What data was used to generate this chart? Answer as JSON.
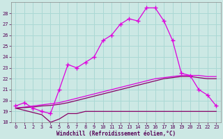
{
  "xlabel": "Windchill (Refroidissement éolien,°C)",
  "background_color": "#cce8e4",
  "grid_color": "#aad8d4",
  "line_color_bright": "#dd00dd",
  "line_color_dark": "#880066",
  "ylim": [
    18,
    29
  ],
  "xlim": [
    -0.5,
    23.5
  ],
  "yticks": [
    18,
    19,
    20,
    21,
    22,
    23,
    24,
    25,
    26,
    27,
    28
  ],
  "xticks": [
    0,
    1,
    2,
    3,
    4,
    5,
    6,
    7,
    8,
    9,
    10,
    11,
    12,
    13,
    14,
    15,
    16,
    17,
    18,
    19,
    20,
    21,
    22,
    23
  ],
  "hours": [
    0,
    1,
    2,
    3,
    4,
    5,
    6,
    7,
    8,
    9,
    10,
    11,
    12,
    13,
    14,
    15,
    16,
    17,
    18,
    19,
    20,
    21,
    22,
    23
  ],
  "temp": [
    19.5,
    19.8,
    19.3,
    19.0,
    18.8,
    21.0,
    23.3,
    23.0,
    23.5,
    24.0,
    25.5,
    26.0,
    27.0,
    27.5,
    27.3,
    28.5,
    28.5,
    27.3,
    25.5,
    22.5,
    22.3,
    21.0,
    20.5,
    19.5
  ],
  "windchill": [
    19.3,
    19.1,
    18.9,
    18.7,
    18.0,
    18.3,
    18.8,
    18.8,
    19.0,
    19.0,
    19.0,
    19.0,
    19.0,
    19.0,
    19.0,
    19.0,
    19.0,
    19.0,
    19.0,
    19.0,
    19.0,
    19.0,
    19.0,
    19.0
  ],
  "linear_bright": [
    19.3,
    19.4,
    19.5,
    19.6,
    19.7,
    19.8,
    20.0,
    20.2,
    20.4,
    20.6,
    20.8,
    21.0,
    21.2,
    21.4,
    21.6,
    21.8,
    22.0,
    22.1,
    22.2,
    22.3,
    22.3,
    22.3,
    22.2,
    22.2
  ],
  "linear_dark": [
    19.3,
    19.35,
    19.4,
    19.5,
    19.55,
    19.65,
    19.8,
    20.0,
    20.2,
    20.4,
    20.6,
    20.8,
    21.0,
    21.2,
    21.4,
    21.6,
    21.8,
    22.0,
    22.1,
    22.2,
    22.2,
    22.1,
    22.0,
    22.0
  ]
}
